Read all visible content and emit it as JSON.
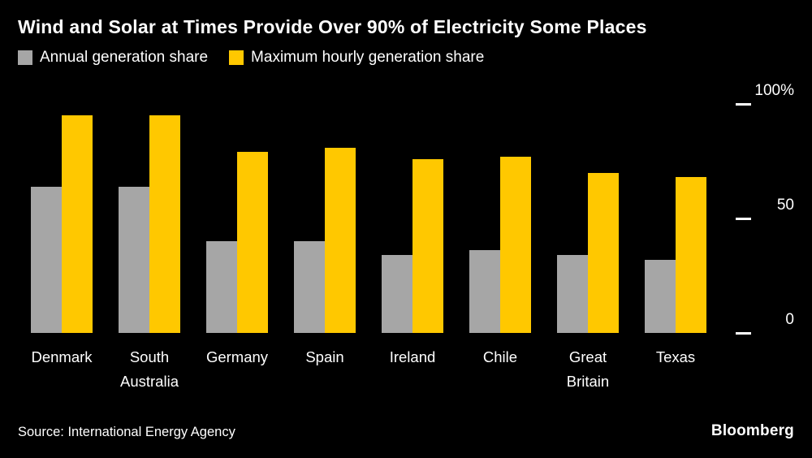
{
  "header": {
    "title": "Wind and Solar at Times Provide Over 90% of Electricity Some Places"
  },
  "legend": [
    {
      "label": "Annual generation share",
      "color": "#a6a6a6"
    },
    {
      "label": "Maximum hourly generation share",
      "color": "#ffc800"
    }
  ],
  "chart_data": {
    "type": "bar",
    "title": "Wind and Solar at Times Provide Over 90% of Electricity Some Places",
    "categories": [
      "Denmark",
      "South Australia",
      "Germany",
      "Spain",
      "Ireland",
      "Chile",
      "Great Britain",
      "Texas"
    ],
    "series": [
      {
        "name": "Annual generation share",
        "color": "#a6a6a6",
        "values": [
          64,
          64,
          40,
          40,
          34,
          36,
          34,
          32
        ]
      },
      {
        "name": "Maximum hourly generation share",
        "color": "#ffc800",
        "values": [
          95,
          95,
          79,
          81,
          76,
          77,
          70,
          68
        ]
      }
    ],
    "xlabel": "",
    "ylabel": "",
    "ylim": [
      0,
      100
    ],
    "yticks": [
      "100%",
      "50",
      "0"
    ],
    "ytick_values": [
      100,
      50,
      0
    ],
    "grid": false,
    "legend_position": "top"
  },
  "footer": {
    "source": "Source: International Energy Agency",
    "brand": "Bloomberg"
  }
}
